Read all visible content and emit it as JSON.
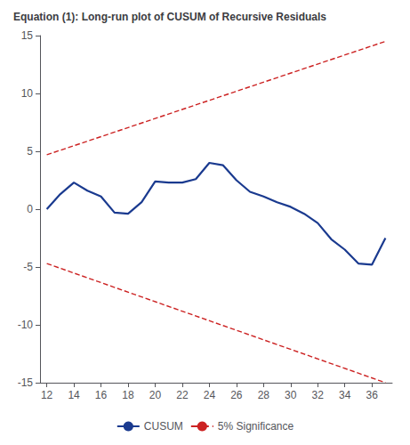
{
  "chart_data": {
    "type": "line",
    "title": "Equation (1): Long-run plot of CUSUM of Recursive Residuals",
    "series": [
      {
        "name": "CUSUM",
        "color": "#1a3a8f",
        "line_style": "solid",
        "x": [
          12,
          13,
          14,
          15,
          16,
          17,
          18,
          19,
          20,
          21,
          22,
          23,
          24,
          25,
          26,
          27,
          28,
          29,
          30,
          31,
          32,
          33,
          34,
          35,
          36,
          37
        ],
        "values": [
          0.0,
          1.3,
          2.3,
          1.6,
          1.1,
          -0.3,
          -0.4,
          0.6,
          2.4,
          2.3,
          2.3,
          2.6,
          4.0,
          3.8,
          2.5,
          1.5,
          1.1,
          0.6,
          0.2,
          -0.4,
          -1.2,
          -2.6,
          -3.5,
          -4.7,
          -4.8,
          -2.5
        ]
      },
      {
        "name": "5% Significance",
        "color": "#cc2222",
        "line_style": "dashed",
        "x": [
          12,
          37
        ],
        "values": [
          4.7,
          14.5
        ]
      },
      {
        "name": "5% Significance",
        "color": "#cc2222",
        "line_style": "dashed",
        "x": [
          12,
          37
        ],
        "values": [
          -4.7,
          -15.0
        ]
      }
    ],
    "xlim": [
      11.5,
      37.5
    ],
    "xticks": [
      12,
      14,
      16,
      18,
      20,
      22,
      24,
      26,
      28,
      30,
      32,
      34,
      36
    ],
    "ylim": [
      -15,
      15
    ],
    "yticks": [
      -15,
      -10,
      -5,
      0,
      5,
      10,
      15
    ],
    "grid": false,
    "legend": "bottom"
  }
}
